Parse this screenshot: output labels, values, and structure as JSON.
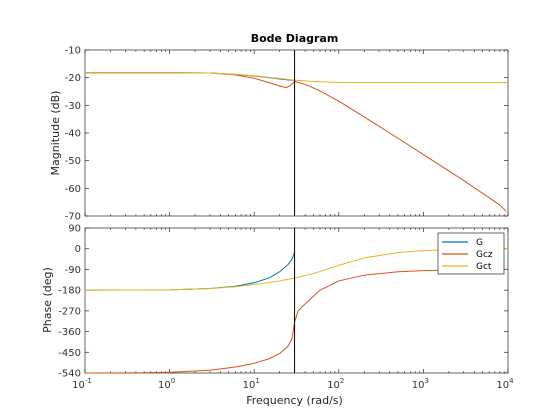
{
  "chart_data": {
    "type": "line",
    "title": "Bode Diagram",
    "xlabel": "Frequency  (rad/s)",
    "x_scale": "log",
    "xlim": [
      0.1,
      10000
    ],
    "x_ticks": [
      0.1,
      1,
      10,
      100,
      1000,
      10000
    ],
    "marker_line_x": 30,
    "legend": {
      "placement": "top-right",
      "entries": [
        "G",
        "Gcz",
        "Gct"
      ]
    },
    "colors": {
      "G": "#0072bd",
      "Gcz": "#d95319",
      "Gct": "#edb120",
      "marker": "#000000"
    },
    "grid": false,
    "magnitude": {
      "ylabel": "Magnitude (dB)",
      "ylim": [
        -70,
        -10
      ],
      "yticks": [
        -70,
        -60,
        -50,
        -40,
        -30,
        -20,
        -10
      ],
      "series": [
        {
          "name": "G",
          "points": [
            [
              0.1,
              -18.2
            ],
            [
              1,
              -18.2
            ],
            [
              3,
              -18.3
            ],
            [
              6,
              -18.8
            ],
            [
              10,
              -19.4
            ],
            [
              15,
              -20.0
            ],
            [
              20,
              -20.5
            ],
            [
              25,
              -20.8
            ],
            [
              30,
              -21.0
            ]
          ]
        },
        {
          "name": "Gcz",
          "points": [
            [
              0.1,
              -18.2
            ],
            [
              1,
              -18.2
            ],
            [
              3,
              -18.3
            ],
            [
              6,
              -19.0
            ],
            [
              10,
              -20.2
            ],
            [
              15,
              -21.8
            ],
            [
              20,
              -23.0
            ],
            [
              24,
              -23.6
            ],
            [
              27,
              -22.8
            ],
            [
              30,
              -21.4
            ],
            [
              40,
              -22.4
            ],
            [
              60,
              -24.8
            ],
            [
              100,
              -28.5
            ],
            [
              200,
              -34.2
            ],
            [
              400,
              -40.0
            ],
            [
              1000,
              -47.8
            ],
            [
              3000,
              -57.2
            ],
            [
              8000,
              -66.0
            ],
            [
              9500,
              -68.3
            ]
          ]
        },
        {
          "name": "Gct",
          "points": [
            [
              0.1,
              -18.2
            ],
            [
              1,
              -18.2
            ],
            [
              3,
              -18.3
            ],
            [
              6,
              -18.8
            ],
            [
              10,
              -19.3
            ],
            [
              20,
              -20.3
            ],
            [
              30,
              -20.9
            ],
            [
              50,
              -21.4
            ],
            [
              100,
              -21.7
            ],
            [
              1000,
              -21.8
            ],
            [
              10000,
              -21.8
            ]
          ]
        }
      ]
    },
    "phase": {
      "ylabel": "Phase (deg)",
      "ylim": [
        -540,
        90
      ],
      "yticks": [
        -540,
        -450,
        -360,
        -270,
        -180,
        -90,
        0,
        90
      ],
      "series": [
        {
          "name": "G",
          "points": [
            [
              0.1,
              -180
            ],
            [
              1,
              -179
            ],
            [
              3,
              -173
            ],
            [
              6,
              -163
            ],
            [
              10,
              -148
            ],
            [
              15,
              -127
            ],
            [
              20,
              -100
            ],
            [
              25,
              -70
            ],
            [
              28,
              -45
            ],
            [
              30,
              -15
            ]
          ]
        },
        {
          "name": "Gcz",
          "points": [
            [
              0.1,
              -540
            ],
            [
              0.5,
              -539
            ],
            [
              1,
              -537
            ],
            [
              3,
              -528
            ],
            [
              6,
              -514
            ],
            [
              10,
              -498
            ],
            [
              15,
              -478
            ],
            [
              20,
              -455
            ],
            [
              25,
              -425
            ],
            [
              28,
              -390
            ],
            [
              30,
              -320
            ],
            [
              33,
              -270
            ],
            [
              40,
              -240
            ],
            [
              60,
              -180
            ],
            [
              100,
              -140
            ],
            [
              200,
              -115
            ],
            [
              500,
              -100
            ],
            [
              1000,
              -95
            ],
            [
              5000,
              -91
            ],
            [
              10000,
              -90
            ]
          ]
        },
        {
          "name": "Gct",
          "points": [
            [
              0.1,
              -180
            ],
            [
              1,
              -179
            ],
            [
              3,
              -173
            ],
            [
              6,
              -165
            ],
            [
              10,
              -156
            ],
            [
              20,
              -140
            ],
            [
              30,
              -128
            ],
            [
              50,
              -108
            ],
            [
              100,
              -72
            ],
            [
              200,
              -40
            ],
            [
              500,
              -17
            ],
            [
              1000,
              -8
            ],
            [
              3000,
              -3
            ],
            [
              10000,
              0
            ]
          ]
        }
      ]
    }
  }
}
